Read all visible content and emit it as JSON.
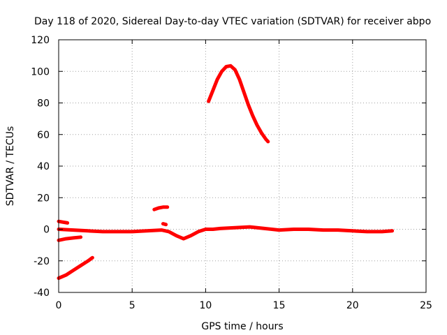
{
  "chart_data": {
    "type": "scatter",
    "title": "Day 118 of 2020, Sidereal Day-to-day VTEC variation (SDTVAR) for receiver abpo",
    "xlabel": "GPS time / hours",
    "ylabel": "SDTVAR / TECUs",
    "xlim": [
      0,
      25
    ],
    "ylim": [
      -40,
      120
    ],
    "xticks": [
      0,
      5,
      10,
      15,
      20,
      25
    ],
    "yticks": [
      -40,
      -20,
      0,
      20,
      40,
      60,
      80,
      100,
      120
    ],
    "grid": true,
    "marker_color": "#ff0000",
    "series": [
      {
        "name": "track-upper-start",
        "x": [
          0.0,
          0.3,
          0.6
        ],
        "y": [
          5,
          4.5,
          4
        ]
      },
      {
        "name": "track-lower-start",
        "x": [
          0.0,
          0.5,
          1.0,
          1.5
        ],
        "y": [
          -7,
          -6,
          -5.5,
          -5
        ]
      },
      {
        "name": "track-ramp",
        "x": [
          0.0,
          0.5,
          1.0,
          1.5,
          2.0,
          2.3
        ],
        "y": [
          -31,
          -29,
          -26,
          -23,
          -20,
          -18
        ]
      },
      {
        "name": "track-short-high",
        "x": [
          6.5,
          6.8,
          7.1,
          7.4
        ],
        "y": [
          12.5,
          13.5,
          14,
          14
        ]
      },
      {
        "name": "track-short-mid",
        "x": [
          7.1,
          7.3
        ],
        "y": [
          3.5,
          3
        ]
      },
      {
        "name": "track-peak",
        "x": [
          10.2,
          10.5,
          10.8,
          11.1,
          11.4,
          11.7,
          12.0,
          12.3,
          12.6,
          12.9,
          13.2,
          13.5,
          13.8,
          14.1,
          14.25
        ],
        "y": [
          81,
          88,
          95,
          100,
          103,
          103.5,
          101,
          95,
          87,
          79,
          72,
          66,
          61,
          57,
          55.5
        ]
      },
      {
        "name": "track-baseline",
        "x": [
          0.0,
          1.0,
          2.0,
          3.0,
          4.0,
          5.0,
          6.0,
          7.0,
          7.5,
          8.0,
          8.5,
          9.0,
          9.5,
          10.0,
          10.5,
          11.0,
          12.0,
          13.0,
          14.0,
          15.0,
          16.0,
          17.0,
          18.0,
          19.0,
          20.0,
          21.0,
          22.0,
          22.7
        ],
        "y": [
          0,
          -0.5,
          -1,
          -1.5,
          -1.5,
          -1.5,
          -1,
          -0.5,
          -1.5,
          -4,
          -6,
          -4,
          -1.5,
          0,
          0,
          0.5,
          1,
          1.5,
          0.5,
          -0.5,
          0,
          0,
          -0.5,
          -0.5,
          -1,
          -1.5,
          -1.5,
          -1
        ]
      }
    ]
  }
}
